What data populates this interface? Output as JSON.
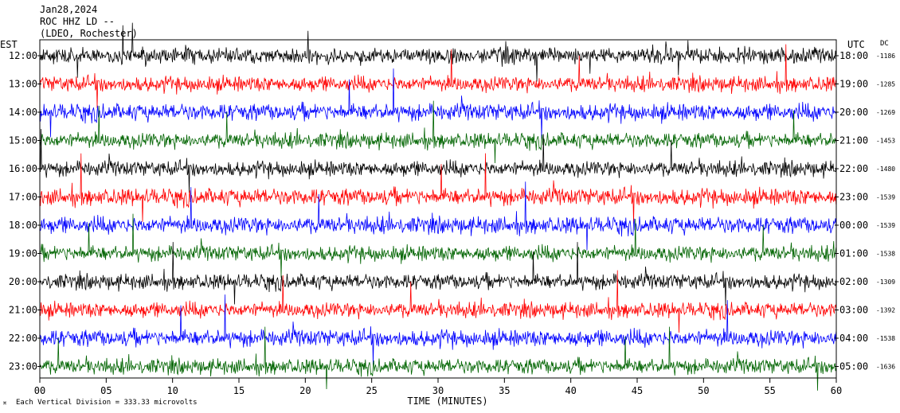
{
  "header": {
    "date": "Jan28,2024",
    "channel": "ROC HHZ LD --",
    "network": "(LDEO, Rochester)"
  },
  "left_axis_title": "EST",
  "right_axis_title": "UTC",
  "dc_title": "DC",
  "footer": {
    "x_axis_title": "TIME (MINUTES)",
    "scale_note": "Each Vertical Division = 333.33 microvolts"
  },
  "colors": {
    "black": "#000000",
    "red": "#ff0000",
    "blue": "#0000ff",
    "green": "#006400"
  },
  "chart_data": {
    "type": "helicorder",
    "x_label": "TIME (MINUTES)",
    "x_ticks": [
      "00",
      "05",
      "10",
      "15",
      "20",
      "25",
      "30",
      "35",
      "40",
      "45",
      "50",
      "55",
      "60"
    ],
    "xlim": [
      0,
      60
    ],
    "color_cycle": [
      "black",
      "red",
      "blue",
      "green"
    ],
    "rows": [
      {
        "est": "12:00",
        "utc": "18:00",
        "dc": "-1186",
        "color": "black",
        "amp": 1.0
      },
      {
        "est": "13:00",
        "utc": "19:00",
        "dc": "-1285",
        "color": "red",
        "amp": 1.0
      },
      {
        "est": "14:00",
        "utc": "20:00",
        "dc": "-1269",
        "color": "blue",
        "amp": 1.1
      },
      {
        "est": "15:00",
        "utc": "21:00",
        "dc": "-1453",
        "color": "green",
        "amp": 1.0
      },
      {
        "est": "16:00",
        "utc": "22:00",
        "dc": "-1480",
        "color": "black",
        "amp": 1.0
      },
      {
        "est": "17:00",
        "utc": "23:00",
        "dc": "-1539",
        "color": "red",
        "amp": 1.1
      },
      {
        "est": "18:00",
        "utc": "00:00",
        "dc": "-1539",
        "color": "blue",
        "amp": 1.1
      },
      {
        "est": "19:00",
        "utc": "01:00",
        "dc": "-1538",
        "color": "green",
        "amp": 1.0
      },
      {
        "est": "20:00",
        "utc": "02:00",
        "dc": "-1309",
        "color": "black",
        "amp": 1.0
      },
      {
        "est": "21:00",
        "utc": "03:00",
        "dc": "-1392",
        "color": "red",
        "amp": 1.0
      },
      {
        "est": "22:00",
        "utc": "04:00",
        "dc": "-1538",
        "color": "blue",
        "amp": 1.1
      },
      {
        "est": "23:00",
        "utc": "05:00",
        "dc": "-1636",
        "color": "green",
        "amp": 1.0
      }
    ]
  }
}
